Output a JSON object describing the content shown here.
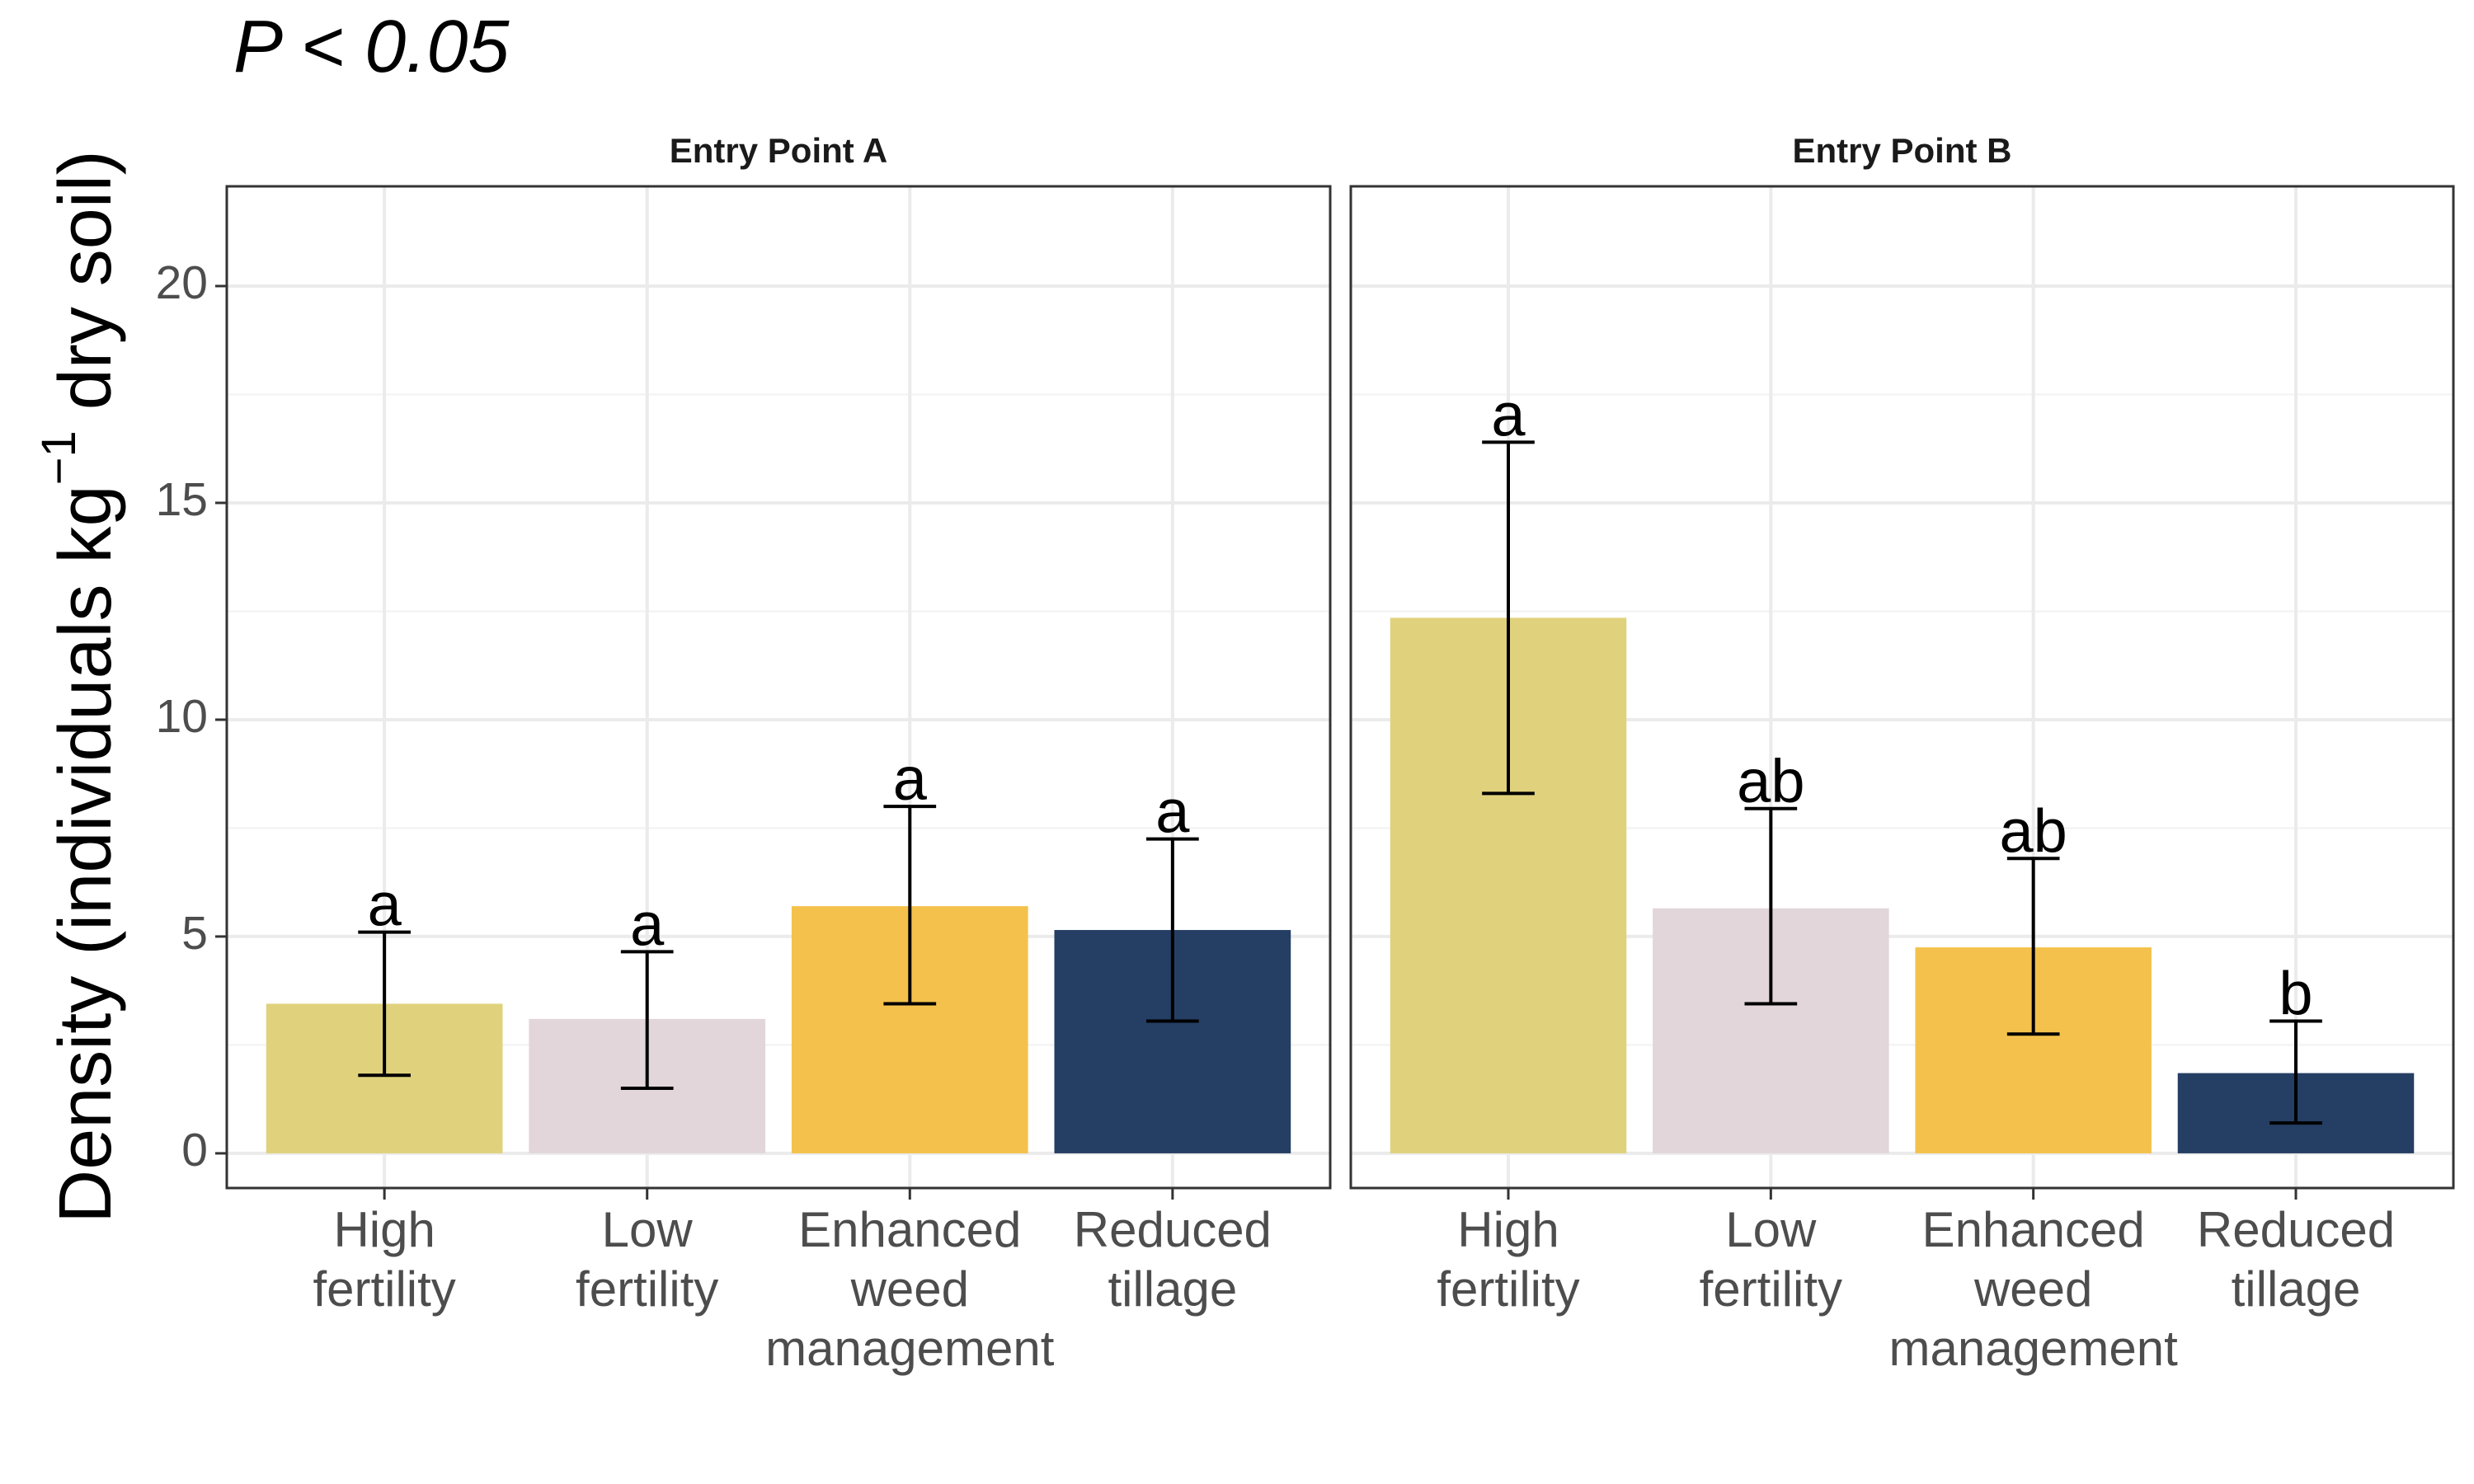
{
  "chart_data": {
    "type": "bar",
    "title": "P < 0.05",
    "y_label": [
      "Density (individuals kg",
      "−1",
      " dry soil)"
    ],
    "ylim": [
      -0.8,
      22.3
    ],
    "yticks": [
      0,
      5,
      10,
      15,
      20
    ],
    "grid": true,
    "colors": [
      "#e0d27c",
      "#e2d6da",
      "#f4c24c",
      "#253e63"
    ],
    "facets": [
      {
        "title": "Entry Point A",
        "categories": [
          [
            "High",
            "fertility"
          ],
          [
            "Low",
            "fertility"
          ],
          [
            "Enhanced",
            "weed",
            "management"
          ],
          [
            "Reduced",
            "tillage"
          ]
        ],
        "values": [
          3.45,
          3.1,
          5.7,
          5.15
        ],
        "error_low": [
          1.8,
          1.5,
          3.45,
          3.05
        ],
        "error_high": [
          5.1,
          4.65,
          8.0,
          7.25
        ],
        "letters": [
          "a",
          "a",
          "a",
          "a"
        ]
      },
      {
        "title": "Entry Point B",
        "categories": [
          [
            "High",
            "fertility"
          ],
          [
            "Low",
            "fertility"
          ],
          [
            "Enhanced",
            "weed",
            "management"
          ],
          [
            "Reduced",
            "tillage"
          ]
        ],
        "values": [
          12.35,
          5.65,
          4.75,
          1.85
        ],
        "error_low": [
          8.3,
          3.45,
          2.75,
          0.7
        ],
        "error_high": [
          16.4,
          7.95,
          6.8,
          3.05
        ],
        "letters": [
          "a",
          "ab",
          "ab",
          "b"
        ]
      }
    ]
  }
}
